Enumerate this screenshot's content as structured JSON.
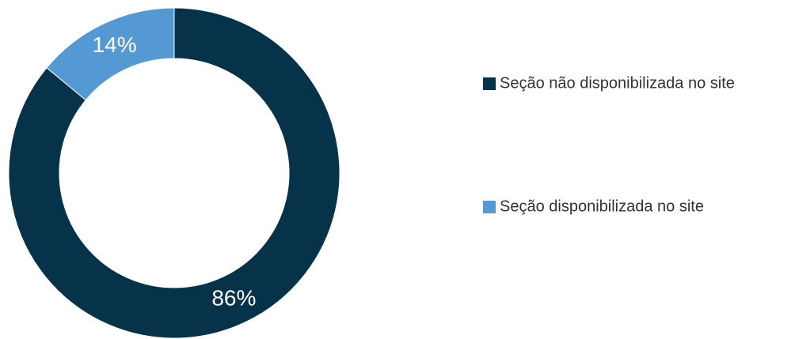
{
  "chart_data": {
    "type": "donut",
    "categories": [
      "Seção não disponibilizada no site",
      "Seção disponibilizada no site"
    ],
    "values": [
      86,
      14
    ],
    "value_labels": [
      "86%",
      "14%"
    ],
    "colors": [
      "#06324a",
      "#5499d3"
    ]
  }
}
